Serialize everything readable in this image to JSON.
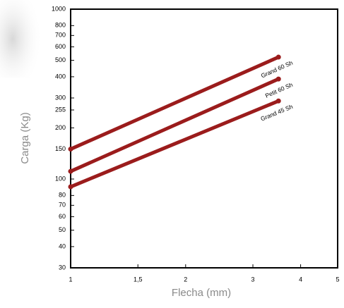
{
  "chart_data": {
    "type": "line",
    "x_label": "Flecha (mm)",
    "y_label": "Carga (Kg)",
    "x": [
      1,
      3.5
    ],
    "series": [
      {
        "name": "Grand 60 Sh",
        "color": "#9b1c1c",
        "values": [
          150,
          522
        ]
      },
      {
        "name": "Petit 60 Sh",
        "color": "#9b1c1c",
        "values": [
          111,
          388
        ]
      },
      {
        "name": "Grand 45 Sh",
        "color": "#9b1c1c",
        "values": [
          90,
          288
        ]
      }
    ],
    "xscale": "log",
    "yscale": "log",
    "xlim": [
      1,
      5
    ],
    "ylim": [
      30,
      1000
    ],
    "xticks": [
      1,
      {
        "value": 1.5,
        "label": "1,5"
      },
      2,
      3,
      4,
      5
    ],
    "yticks": [
      30,
      40,
      50,
      60,
      70,
      80,
      100,
      150,
      200,
      255,
      300,
      400,
      500,
      600,
      700,
      800,
      1000
    ],
    "grid": false
  }
}
